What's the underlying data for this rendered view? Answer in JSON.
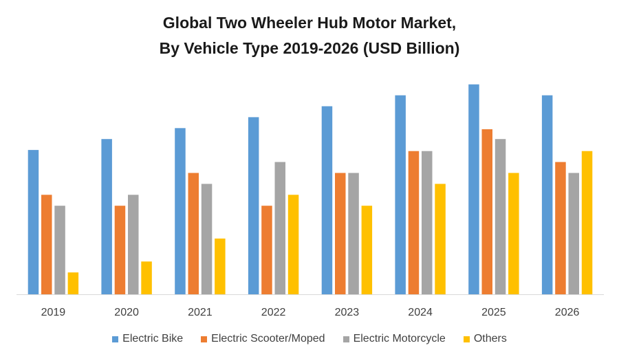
{
  "chart_data": {
    "type": "bar",
    "title_line1": "Global Two Wheeler Hub Motor Market,",
    "title_line2": "By Vehicle Type 2019-2026 (USD Billion)",
    "xlabel": "",
    "ylabel": "",
    "categories": [
      "2019",
      "2020",
      "2021",
      "2022",
      "2023",
      "2024",
      "2025",
      "2026"
    ],
    "series": [
      {
        "name": "Electric Bike",
        "color": "#5b9bd5",
        "values": [
          13.2,
          14.2,
          15.2,
          16.2,
          17.2,
          18.2,
          19.2,
          18.2
        ]
      },
      {
        "name": "Electric Scooter/Moped",
        "color": "#ed7d31",
        "values": [
          9.1,
          8.1,
          11.1,
          8.1,
          11.1,
          13.1,
          15.1,
          12.1
        ]
      },
      {
        "name": "Electric Motorcycle",
        "color": "#a5a5a5",
        "values": [
          8.1,
          9.1,
          10.1,
          12.1,
          11.1,
          13.1,
          14.2,
          11.1
        ]
      },
      {
        "name": "Others",
        "color": "#ffc000",
        "values": [
          2.0,
          3.0,
          5.1,
          9.1,
          8.1,
          10.1,
          11.1,
          13.1
        ]
      }
    ],
    "ylim": [
      0,
      20
    ],
    "grid": false,
    "legend_position": "bottom"
  }
}
